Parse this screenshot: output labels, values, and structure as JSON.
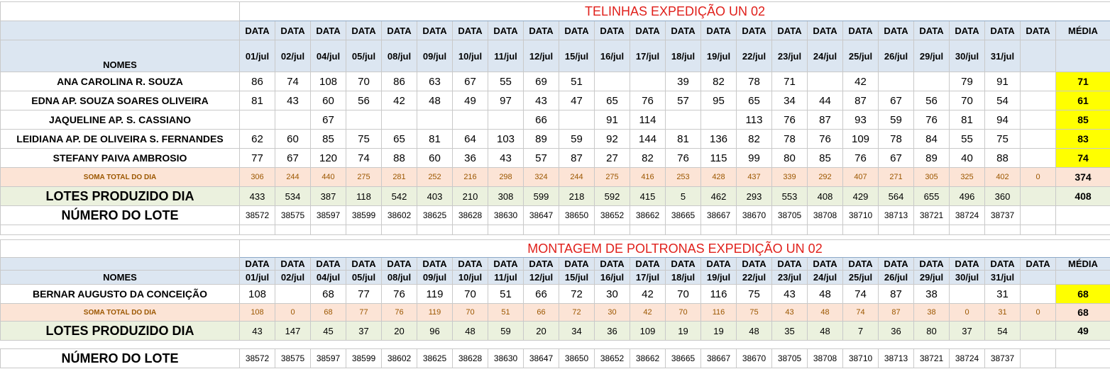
{
  "section1": {
    "title": "TELINHAS EXPEDIÇÃO UN 02",
    "date_header": "DATA",
    "media_header": "MÉDIA",
    "nomes_label": "NOMES",
    "dates": [
      "01/jul",
      "02/jul",
      "04/jul",
      "05/jul",
      "08/jul",
      "09/jul",
      "10/jul",
      "11/jul",
      "12/jul",
      "15/jul",
      "16/jul",
      "17/jul",
      "18/jul",
      "19/jul",
      "22/jul",
      "23/jul",
      "24/jul",
      "25/jul",
      "26/jul",
      "29/jul",
      "30/jul",
      "31/jul",
      ""
    ],
    "people": [
      {
        "name": "ANA CAROLINA R. SOUZA",
        "values": [
          "86",
          "74",
          "108",
          "70",
          "86",
          "63",
          "67",
          "55",
          "69",
          "51",
          "",
          "",
          "39",
          "82",
          "78",
          "71",
          "",
          "42",
          "",
          "",
          "79",
          "91",
          ""
        ],
        "media": "71"
      },
      {
        "name": "EDNA AP. SOUZA SOARES OLIVEIRA",
        "values": [
          "81",
          "43",
          "60",
          "56",
          "42",
          "48",
          "49",
          "97",
          "43",
          "47",
          "65",
          "76",
          "57",
          "95",
          "65",
          "34",
          "44",
          "87",
          "67",
          "56",
          "70",
          "54",
          ""
        ],
        "media": "61"
      },
      {
        "name": "JAQUELINE AP.  S. CASSIANO",
        "values": [
          "",
          "",
          "67",
          "",
          "",
          "",
          "",
          "",
          "66",
          "",
          "91",
          "114",
          "",
          "",
          "113",
          "76",
          "87",
          "93",
          "59",
          "76",
          "81",
          "94",
          ""
        ],
        "media": "85"
      },
      {
        "name": "LEIDIANA AP. DE OLIVEIRA S. FERNANDES",
        "values": [
          "62",
          "60",
          "85",
          "75",
          "65",
          "81",
          "64",
          "103",
          "89",
          "59",
          "92",
          "144",
          "81",
          "136",
          "82",
          "78",
          "76",
          "109",
          "78",
          "84",
          "55",
          "75",
          ""
        ],
        "media": "83"
      },
      {
        "name": "STEFANY PAIVA AMBROSIO",
        "values": [
          "77",
          "67",
          "120",
          "74",
          "88",
          "60",
          "36",
          "43",
          "57",
          "87",
          "27",
          "82",
          "76",
          "115",
          "99",
          "80",
          "85",
          "76",
          "67",
          "89",
          "40",
          "88",
          ""
        ],
        "media": "74"
      }
    ],
    "soma": {
      "label": "SOMA TOTAL DO DIA",
      "values": [
        "306",
        "244",
        "440",
        "275",
        "281",
        "252",
        "216",
        "298",
        "324",
        "244",
        "275",
        "416",
        "253",
        "428",
        "437",
        "339",
        "292",
        "407",
        "271",
        "305",
        "325",
        "402",
        "0"
      ],
      "media": "374"
    },
    "lotes": {
      "label": "LOTES PRODUZIDO DIA",
      "values": [
        "433",
        "534",
        "387",
        "118",
        "542",
        "403",
        "210",
        "308",
        "599",
        "218",
        "592",
        "415",
        "5",
        "462",
        "293",
        "553",
        "408",
        "429",
        "564",
        "655",
        "496",
        "360",
        ""
      ],
      "media": "408"
    },
    "numero": {
      "label": "NÚMERO DO LOTE",
      "values": [
        "38572",
        "38575",
        "38597",
        "38599",
        "38602",
        "38625",
        "38628",
        "38630",
        "38647",
        "38650",
        "38652",
        "38662",
        "38665",
        "38667",
        "38670",
        "38705",
        "38708",
        "38710",
        "38713",
        "38721",
        "38724",
        "38737",
        ""
      ]
    }
  },
  "section2": {
    "title": "MONTAGEM DE POLTRONAS EXPEDIÇÃO UN 02",
    "date_header": "DATA",
    "media_header": "MÉDIA",
    "nomes_label": "NOMES",
    "dates": [
      "01/jul",
      "02/jul",
      "04/jul",
      "05/jul",
      "08/jul",
      "09/jul",
      "10/jul",
      "11/jul",
      "12/jul",
      "15/jul",
      "16/jul",
      "17/jul",
      "18/jul",
      "19/jul",
      "22/jul",
      "23/jul",
      "24/jul",
      "25/jul",
      "26/jul",
      "29/jul",
      "30/jul",
      "31/jul",
      ""
    ],
    "people": [
      {
        "name": "BERNAR AUGUSTO DA CONCEIÇÃO",
        "values": [
          "108",
          "",
          "68",
          "77",
          "76",
          "119",
          "70",
          "51",
          "66",
          "72",
          "30",
          "42",
          "70",
          "116",
          "75",
          "43",
          "48",
          "74",
          "87",
          "38",
          "",
          "31",
          ""
        ],
        "media": "68"
      }
    ],
    "soma": {
      "label": "SOMA TOTAL DO DIA",
      "values": [
        "108",
        "0",
        "68",
        "77",
        "76",
        "119",
        "70",
        "51",
        "66",
        "72",
        "30",
        "42",
        "70",
        "116",
        "75",
        "43",
        "48",
        "74",
        "87",
        "38",
        "0",
        "31",
        "0"
      ],
      "media": "68"
    },
    "lotes": {
      "label": "LOTES PRODUZIDO DIA",
      "values": [
        "43",
        "147",
        "45",
        "37",
        "20",
        "96",
        "48",
        "59",
        "20",
        "34",
        "36",
        "109",
        "19",
        "19",
        "48",
        "35",
        "48",
        "7",
        "36",
        "80",
        "37",
        "54",
        ""
      ],
      "media": "49"
    }
  },
  "section3": {
    "numero": {
      "label": "NÚMERO DO LOTE",
      "values": [
        "38572",
        "38575",
        "38597",
        "38599",
        "38602",
        "38625",
        "38628",
        "38630",
        "38647",
        "38650",
        "38652",
        "38662",
        "38665",
        "38667",
        "38670",
        "38705",
        "38708",
        "38710",
        "38713",
        "38721",
        "38724",
        "38737",
        ""
      ]
    }
  }
}
